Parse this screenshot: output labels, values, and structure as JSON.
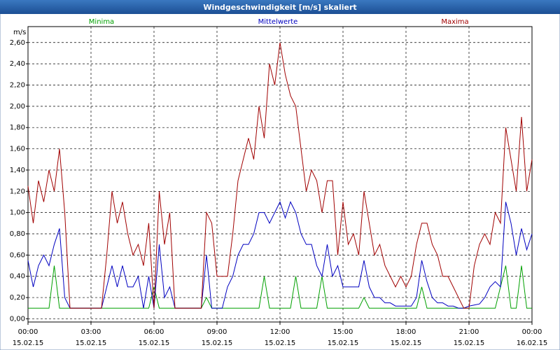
{
  "chart_data": {
    "type": "line",
    "title": "Windgeschwindigkeit [m/s] skaliert",
    "y_label": "m/s",
    "x": [
      0,
      0.25,
      0.5,
      0.75,
      1,
      1.25,
      1.5,
      1.75,
      2,
      2.25,
      2.5,
      2.75,
      3,
      3.25,
      3.5,
      3.75,
      4,
      4.25,
      4.5,
      4.75,
      5,
      5.25,
      5.5,
      5.75,
      6,
      6.25,
      6.5,
      6.75,
      7,
      7.25,
      7.5,
      7.75,
      8,
      8.25,
      8.5,
      8.75,
      9,
      9.25,
      9.5,
      9.75,
      10,
      10.25,
      10.5,
      10.75,
      11,
      11.25,
      11.5,
      11.75,
      12,
      12.25,
      12.5,
      12.75,
      13,
      13.25,
      13.5,
      13.75,
      14,
      14.25,
      14.5,
      14.75,
      15,
      15.25,
      15.5,
      15.75,
      16,
      16.25,
      16.5,
      16.75,
      17,
      17.25,
      17.5,
      17.75,
      18,
      18.25,
      18.5,
      18.75,
      19,
      19.25,
      19.5,
      19.75,
      20,
      20.25,
      20.5,
      20.75,
      21,
      21.25,
      21.5,
      21.75,
      22,
      22.25,
      22.5,
      22.75,
      23,
      23.25,
      23.5,
      23.75,
      24
    ],
    "series": [
      {
        "name": "Minima",
        "color": "#00a000",
        "values": [
          0.1,
          0.1,
          0.1,
          0.1,
          0.1,
          0.5,
          0.1,
          0.1,
          0.1,
          0.1,
          0.1,
          0.1,
          0.1,
          0.1,
          0.1,
          0.1,
          0.1,
          0.1,
          0.1,
          0.1,
          0.1,
          0.1,
          0.1,
          0.1,
          0.3,
          0.1,
          0.1,
          0.1,
          0.1,
          0.1,
          0.1,
          0.1,
          0.1,
          0.1,
          0.2,
          0.1,
          0.1,
          0.1,
          0.1,
          0.1,
          0.1,
          0.1,
          0.1,
          0.1,
          0.1,
          0.4,
          0.1,
          0.1,
          0.1,
          0.1,
          0.1,
          0.4,
          0.1,
          0.1,
          0.1,
          0.1,
          0.4,
          0.1,
          0.1,
          0.1,
          0.1,
          0.1,
          0.1,
          0.1,
          0.2,
          0.1,
          0.1,
          0.1,
          0.1,
          0.1,
          0.1,
          0.1,
          0.1,
          0.1,
          0.1,
          0.3,
          0.1,
          0.1,
          0.1,
          0.1,
          0.1,
          0.1,
          0.1,
          0.1,
          0.1,
          0.1,
          0.1,
          0.1,
          0.1,
          0.1,
          0.3,
          0.5,
          0.1,
          0.1,
          0.5,
          0.1,
          0.1
        ]
      },
      {
        "name": "Mittelwerte",
        "color": "#0000c0",
        "values": [
          0.55,
          0.3,
          0.5,
          0.6,
          0.5,
          0.7,
          0.85,
          0.2,
          0.1,
          0.1,
          0.1,
          0.1,
          0.1,
          0.1,
          0.1,
          0.3,
          0.5,
          0.3,
          0.5,
          0.3,
          0.3,
          0.4,
          0.1,
          0.4,
          0.1,
          0.7,
          0.2,
          0.3,
          0.1,
          0.1,
          0.1,
          0.1,
          0.1,
          0.1,
          0.6,
          0.1,
          0.1,
          0.1,
          0.3,
          0.4,
          0.6,
          0.7,
          0.7,
          0.8,
          1.0,
          1.0,
          0.9,
          1.0,
          1.1,
          0.95,
          1.1,
          1.0,
          0.8,
          0.7,
          0.7,
          0.5,
          0.4,
          0.7,
          0.4,
          0.5,
          0.3,
          0.3,
          0.3,
          0.3,
          0.55,
          0.3,
          0.2,
          0.2,
          0.15,
          0.15,
          0.12,
          0.12,
          0.12,
          0.12,
          0.2,
          0.55,
          0.35,
          0.2,
          0.15,
          0.15,
          0.12,
          0.12,
          0.1,
          0.1,
          0.12,
          0.13,
          0.14,
          0.2,
          0.3,
          0.35,
          0.3,
          1.1,
          0.9,
          0.6,
          0.85,
          0.65,
          0.8
        ]
      },
      {
        "name": "Maxima",
        "color": "#a00000",
        "values": [
          1.25,
          0.9,
          1.3,
          1.1,
          1.4,
          1.2,
          1.6,
          1.0,
          0.1,
          0.1,
          0.1,
          0.1,
          0.1,
          0.1,
          0.1,
          0.6,
          1.2,
          0.9,
          1.1,
          0.8,
          0.6,
          0.7,
          0.5,
          0.9,
          0.1,
          1.2,
          0.7,
          1.0,
          0.1,
          0.1,
          0.1,
          0.1,
          0.1,
          0.1,
          1.0,
          0.9,
          0.4,
          0.4,
          0.4,
          0.8,
          1.3,
          1.5,
          1.7,
          1.5,
          2.0,
          1.7,
          2.4,
          2.2,
          2.6,
          2.3,
          2.1,
          2.0,
          1.6,
          1.2,
          1.4,
          1.3,
          1.0,
          1.3,
          1.3,
          0.6,
          1.1,
          0.7,
          0.8,
          0.6,
          1.2,
          0.9,
          0.6,
          0.7,
          0.5,
          0.4,
          0.3,
          0.4,
          0.3,
          0.4,
          0.7,
          0.9,
          0.9,
          0.7,
          0.6,
          0.4,
          0.4,
          0.3,
          0.2,
          0.1,
          0.1,
          0.5,
          0.7,
          0.8,
          0.7,
          1.0,
          0.9,
          1.8,
          1.5,
          1.2,
          1.9,
          1.2,
          1.5
        ]
      }
    ],
    "xlim": [
      0,
      24
    ],
    "xticks": [
      {
        "value": 0,
        "label": "00:00"
      },
      {
        "value": 3,
        "label": "03:00"
      },
      {
        "value": 6,
        "label": "06:00"
      },
      {
        "value": 9,
        "label": "09:00"
      },
      {
        "value": 12,
        "label": "12:00"
      },
      {
        "value": 15,
        "label": "15:00"
      },
      {
        "value": 18,
        "label": "18:00"
      },
      {
        "value": 21,
        "label": "21:00"
      },
      {
        "value": 24,
        "label": "00:00"
      }
    ],
    "xtick_dates": [
      "15.02.15",
      "15.02.15",
      "15.02.15",
      "15.02.15",
      "15.02.15",
      "15.02.15",
      "15.02.15",
      "15.02.15",
      "16.02.15"
    ],
    "ylim": [
      -0.03,
      2.75
    ],
    "yticks": [
      {
        "value": 0,
        "label": "0,00"
      },
      {
        "value": 0.2,
        "label": "0,20"
      },
      {
        "value": 0.4,
        "label": "0,40"
      },
      {
        "value": 0.6,
        "label": "0,60"
      },
      {
        "value": 0.8,
        "label": "0,80"
      },
      {
        "value": 1.0,
        "label": "1,00"
      },
      {
        "value": 1.2,
        "label": "1,20"
      },
      {
        "value": 1.4,
        "label": "1,40"
      },
      {
        "value": 1.6,
        "label": "1,60"
      },
      {
        "value": 1.8,
        "label": "1,80"
      },
      {
        "value": 2.0,
        "label": "2,00"
      },
      {
        "value": 2.2,
        "label": "2,20"
      },
      {
        "value": 2.4,
        "label": "2,40"
      },
      {
        "value": 2.6,
        "label": "2,60"
      }
    ],
    "grid": true
  }
}
